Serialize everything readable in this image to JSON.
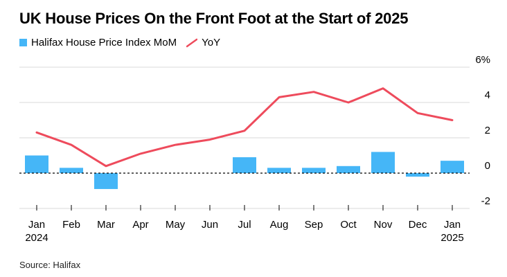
{
  "colors": {
    "bar": "#45b6f7",
    "line": "#ee4b5c",
    "grid": "#d9d9d9",
    "axis": "#000000"
  },
  "chart_data": {
    "type": "bar",
    "title": "UK House Prices On the Front Foot at the Start of 2025",
    "source": "Source: Halifax",
    "categories": [
      "Jan",
      "Feb",
      "Mar",
      "Apr",
      "May",
      "Jun",
      "Jul",
      "Aug",
      "Sep",
      "Oct",
      "Nov",
      "Dec",
      "Jan"
    ],
    "category_sublabels": [
      "2024",
      "",
      "",
      "",
      "",
      "",
      "",
      "",
      "",
      "",
      "",
      "",
      "2025"
    ],
    "series": [
      {
        "name": "Halifax House Price Index MoM",
        "type": "bar",
        "values": [
          1.0,
          0.3,
          -0.9,
          0.0,
          0.0,
          0.0,
          0.9,
          0.3,
          0.3,
          0.4,
          1.2,
          -0.2,
          0.7
        ]
      },
      {
        "name": "YoY",
        "type": "line",
        "values": [
          2.3,
          1.6,
          0.4,
          1.1,
          1.6,
          1.9,
          2.4,
          4.3,
          4.6,
          4.0,
          4.8,
          3.4,
          3.0
        ]
      }
    ],
    "ylim": [
      -2,
      6
    ],
    "yticks": [
      -2,
      0,
      2,
      4,
      6
    ],
    "ytick_labels": [
      "-2",
      "0",
      "2",
      "4",
      "6%"
    ],
    "grid": true,
    "legend": "top-left",
    "zero_line": "dashed"
  }
}
